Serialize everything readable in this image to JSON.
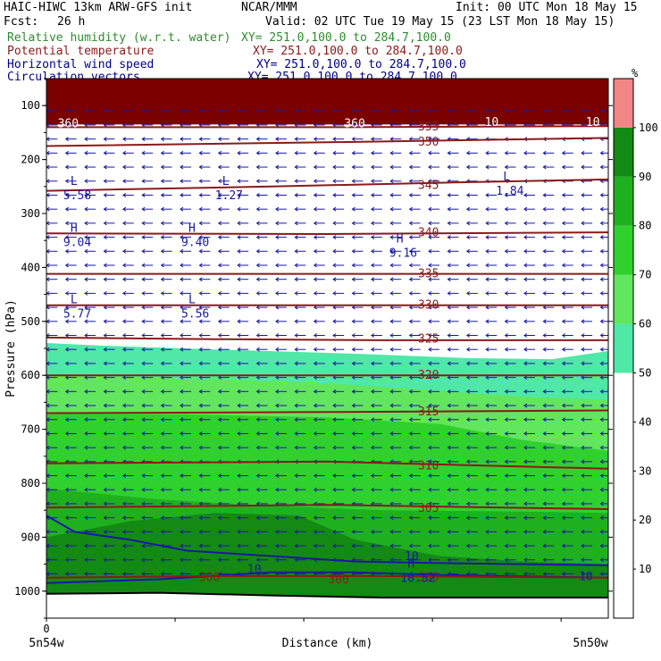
{
  "header": {
    "title": "HAIC-HIWC 13km ARW-GFS init",
    "org": "NCAR/MMM",
    "init": "Init: 00 UTC Mon 18 May 15",
    "fcst_label": "Fcst:",
    "fcst_value": "26 h",
    "valid": "Valid: 02 UTC Tue 19 May 15 (23 LST Mon 18 May 15)",
    "fields": [
      {
        "name": "Relative humidity (w.r.t. water)",
        "xy": "XY= 251.0,100.0 to 284.7,100.0",
        "color": "#2e8b2e"
      },
      {
        "name": "Potential temperature",
        "xy": "XY= 251.0,100.0 to 284.7,100.0",
        "color": "#8b1a1a"
      },
      {
        "name": "Horizontal wind speed",
        "xy": "XY= 251.0,100.0 to 284.7,100.0",
        "color": "#00008b"
      },
      {
        "name": "Circulation vectors",
        "xy": "XY= 251.0,100.0 to 284.7,100.0",
        "color": "#00008b"
      }
    ]
  },
  "chart_data": {
    "type": "heatmap",
    "ylabel": "Pressure (hPa)",
    "xlabel": "Distance (km)",
    "x_start_label": "5n54w",
    "x_end_label": "5n50w",
    "x_tick_zero": "0",
    "y_ticks": [
      100,
      200,
      300,
      400,
      500,
      600,
      700,
      800,
      900,
      1000
    ],
    "y_range": [
      1050,
      50
    ],
    "x_range": [
      0,
      100
    ],
    "colorbar": {
      "unit": "%",
      "labels": [
        "10",
        "20",
        "30",
        "40",
        "50",
        "60",
        "70",
        "80",
        "90",
        "100"
      ],
      "bands": [
        {
          "from": 0,
          "to": 50,
          "color": "#ffffff"
        },
        {
          "from": 50,
          "to": 60,
          "color": "#4fe8a6"
        },
        {
          "from": 60,
          "to": 70,
          "color": "#62e65e"
        },
        {
          "from": 70,
          "to": 80,
          "color": "#30d12e"
        },
        {
          "from": 80,
          "to": 90,
          "color": "#1fb01f"
        },
        {
          "from": 90,
          "to": 100,
          "color": "#138a13"
        },
        {
          "from": 100,
          "to": 110,
          "color": "#f28585"
        }
      ]
    },
    "rh_regions": [
      {
        "level": 60,
        "top": [
          [
            0,
            540
          ],
          [
            10,
            545
          ],
          [
            30,
            552
          ],
          [
            55,
            560
          ],
          [
            75,
            568
          ],
          [
            90,
            570
          ],
          [
            100,
            555
          ]
        ],
        "color": "#4fe8a6"
      },
      {
        "level": 70,
        "top": [
          [
            0,
            600
          ],
          [
            20,
            605
          ],
          [
            45,
            612
          ],
          [
            65,
            625
          ],
          [
            85,
            640
          ],
          [
            100,
            645
          ]
        ],
        "color": "#62e65e"
      },
      {
        "level": 80,
        "top": [
          [
            0,
            670
          ],
          [
            25,
            672
          ],
          [
            50,
            678
          ],
          [
            70,
            690
          ],
          [
            85,
            720
          ],
          [
            100,
            740
          ]
        ],
        "color": "#30d12e"
      },
      {
        "level": 90,
        "top": [
          [
            0,
            810
          ],
          [
            20,
            830
          ],
          [
            40,
            842
          ],
          [
            60,
            850
          ],
          [
            80,
            852
          ],
          [
            100,
            855
          ]
        ],
        "color": "#1fb01f"
      },
      {
        "level": 95,
        "top": [
          [
            0,
            900
          ],
          [
            15,
            870
          ],
          [
            30,
            855
          ],
          [
            45,
            860
          ],
          [
            55,
            905
          ],
          [
            70,
            935
          ],
          [
            85,
            945
          ],
          [
            100,
            950
          ]
        ],
        "color": "#138a13"
      }
    ],
    "top_moist_layer": {
      "bottom": 135,
      "color": "#7b0000"
    },
    "theta_contours": [
      {
        "label": "355",
        "p": [
          [
            0,
            140
          ],
          [
            50,
            140
          ],
          [
            100,
            138
          ]
        ]
      },
      {
        "label": "350",
        "p": [
          [
            0,
            175
          ],
          [
            50,
            168
          ],
          [
            100,
            160
          ]
        ]
      },
      {
        "label": "345",
        "p": [
          [
            0,
            258
          ],
          [
            40,
            250
          ],
          [
            70,
            243
          ],
          [
            100,
            237
          ]
        ]
      },
      {
        "label": "340",
        "p": [
          [
            0,
            337
          ],
          [
            50,
            338
          ],
          [
            100,
            335
          ]
        ]
      },
      {
        "label": "335",
        "p": [
          [
            0,
            412
          ],
          [
            50,
            412
          ],
          [
            100,
            412
          ]
        ]
      },
      {
        "label": "330",
        "p": [
          [
            0,
            470
          ],
          [
            50,
            470
          ],
          [
            100,
            470
          ]
        ]
      },
      {
        "label": "325",
        "p": [
          [
            0,
            530
          ],
          [
            30,
            533
          ],
          [
            60,
            535
          ],
          [
            100,
            535
          ]
        ]
      },
      {
        "label": "320",
        "p": [
          [
            0,
            600
          ],
          [
            50,
            600
          ],
          [
            100,
            600
          ]
        ]
      },
      {
        "label": "315",
        "p": [
          [
            0,
            670
          ],
          [
            50,
            668
          ],
          [
            100,
            665
          ]
        ]
      },
      {
        "label": "310",
        "p": [
          [
            0,
            763
          ],
          [
            50,
            760
          ],
          [
            100,
            773
          ]
        ]
      },
      {
        "label": "305",
        "p": [
          [
            0,
            845
          ],
          [
            50,
            840
          ],
          [
            100,
            848
          ]
        ]
      },
      {
        "label": "300",
        "p": [
          [
            0,
            975
          ],
          [
            30,
            972
          ],
          [
            60,
            972
          ],
          [
            100,
            975
          ]
        ]
      }
    ],
    "wind_10_contour": [
      [
        0,
        860
      ],
      [
        5,
        890
      ],
      [
        15,
        905
      ],
      [
        25,
        925
      ],
      [
        40,
        935
      ],
      [
        55,
        945
      ],
      [
        70,
        948
      ],
      [
        85,
        950
      ],
      [
        100,
        952
      ]
    ],
    "wind_10_lower": [
      [
        0,
        985
      ],
      [
        20,
        978
      ],
      [
        40,
        965
      ],
      [
        55,
        965
      ],
      [
        70,
        970
      ],
      [
        100,
        975
      ]
    ],
    "wind_labels": [
      {
        "text": "10",
        "x": 65,
        "p": 936
      },
      {
        "text": "10",
        "x": 37,
        "p": 960
      },
      {
        "text": "10",
        "x": 96,
        "p": 973
      },
      {
        "text": "300",
        "x": 29,
        "p": 975
      },
      {
        "text": "300",
        "x": 52,
        "p": 979
      }
    ],
    "extrema": [
      {
        "type": "L",
        "value": "5.58",
        "x": 3,
        "p": 250
      },
      {
        "type": "L",
        "value": "1.27",
        "x": 30,
        "p": 250
      },
      {
        "type": "L",
        "value": "1.84",
        "x": 80,
        "p": 242
      },
      {
        "type": "H",
        "value": "9.04",
        "x": 3,
        "p": 337
      },
      {
        "type": "H",
        "value": "9.40",
        "x": 24,
        "p": 337
      },
      {
        "type": "H",
        "value": "9.16",
        "x": 61,
        "p": 357
      },
      {
        "type": "L",
        "value": "5.77",
        "x": 3,
        "p": 470
      },
      {
        "type": "L",
        "value": "5.56",
        "x": 24,
        "p": 470
      },
      {
        "type": "H",
        "value": "10.52",
        "x": 63,
        "p": 960
      }
    ],
    "high_labels": [
      {
        "text": "360",
        "x": 2,
        "p": 120
      },
      {
        "text": "360",
        "x": 53,
        "p": 120
      },
      {
        "text": "10",
        "x": 78,
        "p": 118
      },
      {
        "text": "10",
        "x": 96,
        "p": 118
      }
    ],
    "surface": [
      [
        0,
        1005
      ],
      [
        20,
        1003
      ],
      [
        40,
        1008
      ],
      [
        60,
        1012
      ],
      [
        80,
        1012
      ],
      [
        100,
        1012
      ]
    ]
  }
}
